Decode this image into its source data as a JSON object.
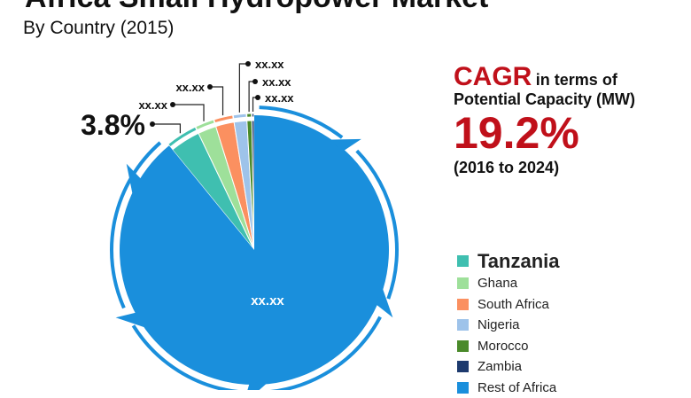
{
  "header": {
    "title": "Africa Small Hydropower Market",
    "subtitle": "By Country (2015)"
  },
  "cagr": {
    "word": "CAGR",
    "line1_rest": "in terms of",
    "line2": "Potential Capacity (MW)",
    "value": "19.2%",
    "period": "(2016 to 2024)"
  },
  "chart_data": {
    "type": "pie",
    "title": "Africa Small Hydropower Market",
    "subtitle": "By Country (2015)",
    "legend_position": "bottom-right",
    "slices": [
      {
        "name": "Tanzania",
        "value": 3.8,
        "label": "3.8%",
        "color": "#3fbfb0"
      },
      {
        "name": "Ghana",
        "value": 2.3,
        "label": "xx.xx",
        "color": "#9ee09a"
      },
      {
        "name": "South Africa",
        "value": 2.3,
        "label": "xx.xx",
        "color": "#fb9060"
      },
      {
        "name": "Nigeria",
        "value": 1.6,
        "label": "xx.xx",
        "color": "#9ec3ea"
      },
      {
        "name": "Morocco",
        "value": 0.6,
        "label": "xx.xx",
        "color": "#4a8a2a"
      },
      {
        "name": "Zambia",
        "value": 0.3,
        "label": "xx.xx",
        "color": "#1d3a6e"
      },
      {
        "name": "Rest of Africa",
        "value": 89.1,
        "label": "xx.xx",
        "color": "#1a8fdc"
      }
    ]
  },
  "legend": [
    {
      "label": "Tanzania",
      "color": "#3fbfb0"
    },
    {
      "label": "Ghana",
      "color": "#9ee09a"
    },
    {
      "label": "South Africa",
      "color": "#fb9060"
    },
    {
      "label": "Nigeria",
      "color": "#9ec3ea"
    },
    {
      "label": "Morocco",
      "color": "#4a8a2a"
    },
    {
      "label": "Zambia",
      "color": "#1d3a6e"
    },
    {
      "label": "Rest of Africa",
      "color": "#1a8fdc"
    }
  ]
}
